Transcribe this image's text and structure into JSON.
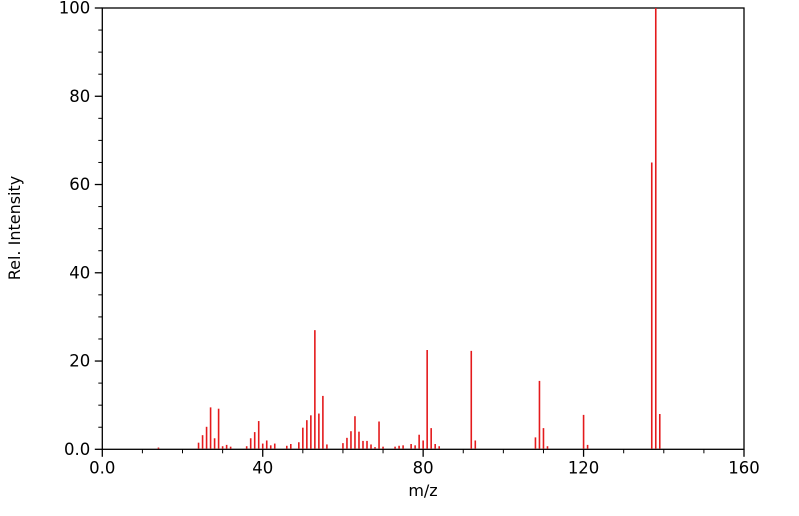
{
  "chart_data": {
    "type": "bar",
    "subtype": "mass-spectrum-stick-plot",
    "title": "",
    "xlabel": "m/z",
    "ylabel": "Rel. Intensity",
    "xlim": [
      0,
      160
    ],
    "ylim": [
      0,
      100
    ],
    "grid": false,
    "legend": "none",
    "frame": "full-box",
    "bar_color": "#e41a1c",
    "axis_color": "#000000",
    "background_color": "#ffffff",
    "x_major_ticks": [
      {
        "value": 0,
        "label": "0.0"
      },
      {
        "value": 40,
        "label": "40"
      },
      {
        "value": 80,
        "label": "80"
      },
      {
        "value": 120,
        "label": "120"
      },
      {
        "value": 160,
        "label": "160"
      }
    ],
    "x_minor_tick_step": 10,
    "y_major_ticks": [
      {
        "value": 0,
        "label": "0.0"
      },
      {
        "value": 20,
        "label": "20"
      },
      {
        "value": 40,
        "label": "40"
      },
      {
        "value": 60,
        "label": "60"
      },
      {
        "value": 80,
        "label": "80"
      },
      {
        "value": 100,
        "label": "100"
      }
    ],
    "y_minor_tick_step": 5,
    "peaks": [
      {
        "mz": 14,
        "intensity": 0.4
      },
      {
        "mz": 24,
        "intensity": 1.5
      },
      {
        "mz": 25,
        "intensity": 3.2
      },
      {
        "mz": 26,
        "intensity": 5.1
      },
      {
        "mz": 27,
        "intensity": 9.5
      },
      {
        "mz": 28,
        "intensity": 2.5
      },
      {
        "mz": 29,
        "intensity": 9.2
      },
      {
        "mz": 30,
        "intensity": 0.7
      },
      {
        "mz": 31,
        "intensity": 1.0
      },
      {
        "mz": 32,
        "intensity": 0.6
      },
      {
        "mz": 36,
        "intensity": 0.7
      },
      {
        "mz": 37,
        "intensity": 2.5
      },
      {
        "mz": 38,
        "intensity": 3.9
      },
      {
        "mz": 39,
        "intensity": 6.4
      },
      {
        "mz": 40,
        "intensity": 1.3
      },
      {
        "mz": 41,
        "intensity": 2.0
      },
      {
        "mz": 42,
        "intensity": 0.9
      },
      {
        "mz": 43,
        "intensity": 1.3
      },
      {
        "mz": 46,
        "intensity": 0.8
      },
      {
        "mz": 47,
        "intensity": 1.2
      },
      {
        "mz": 49,
        "intensity": 1.6
      },
      {
        "mz": 50,
        "intensity": 4.9
      },
      {
        "mz": 51,
        "intensity": 6.6
      },
      {
        "mz": 52,
        "intensity": 7.7
      },
      {
        "mz": 53,
        "intensity": 27.0
      },
      {
        "mz": 54,
        "intensity": 8.1
      },
      {
        "mz": 55,
        "intensity": 12.1
      },
      {
        "mz": 56,
        "intensity": 1.1
      },
      {
        "mz": 60,
        "intensity": 1.4
      },
      {
        "mz": 61,
        "intensity": 2.6
      },
      {
        "mz": 62,
        "intensity": 4.1
      },
      {
        "mz": 63,
        "intensity": 7.5
      },
      {
        "mz": 64,
        "intensity": 4.0
      },
      {
        "mz": 65,
        "intensity": 1.9
      },
      {
        "mz": 66,
        "intensity": 1.9
      },
      {
        "mz": 67,
        "intensity": 1.1
      },
      {
        "mz": 68,
        "intensity": 0.5
      },
      {
        "mz": 69,
        "intensity": 6.3
      },
      {
        "mz": 70,
        "intensity": 0.6
      },
      {
        "mz": 73,
        "intensity": 0.6
      },
      {
        "mz": 74,
        "intensity": 0.8
      },
      {
        "mz": 75,
        "intensity": 0.9
      },
      {
        "mz": 77,
        "intensity": 1.2
      },
      {
        "mz": 78,
        "intensity": 0.9
      },
      {
        "mz": 79,
        "intensity": 3.3
      },
      {
        "mz": 80,
        "intensity": 2.0
      },
      {
        "mz": 81,
        "intensity": 22.5
      },
      {
        "mz": 82,
        "intensity": 4.8
      },
      {
        "mz": 83,
        "intensity": 1.2
      },
      {
        "mz": 84,
        "intensity": 0.7
      },
      {
        "mz": 92,
        "intensity": 22.3
      },
      {
        "mz": 93,
        "intensity": 2.0
      },
      {
        "mz": 108,
        "intensity": 2.7
      },
      {
        "mz": 109,
        "intensity": 15.5
      },
      {
        "mz": 110,
        "intensity": 4.8
      },
      {
        "mz": 111,
        "intensity": 0.7
      },
      {
        "mz": 120,
        "intensity": 7.8
      },
      {
        "mz": 121,
        "intensity": 1.0
      },
      {
        "mz": 137,
        "intensity": 65.0
      },
      {
        "mz": 138,
        "intensity": 100.0
      },
      {
        "mz": 139,
        "intensity": 8.0
      }
    ]
  }
}
